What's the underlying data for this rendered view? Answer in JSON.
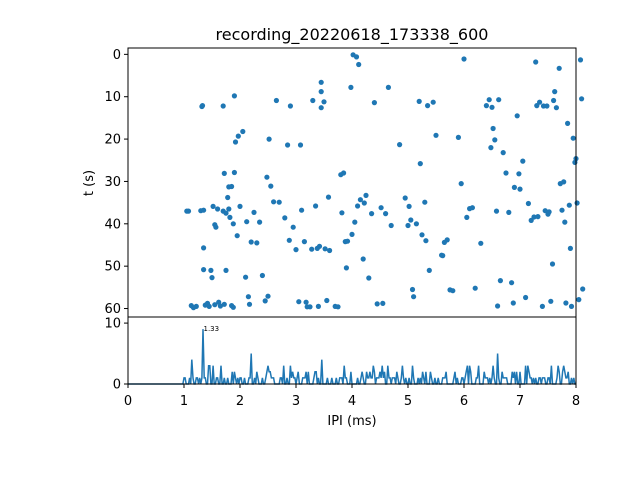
{
  "chart_data": [
    {
      "type": "scatter",
      "title": "recording_20220618_173338_600",
      "xlabel": "",
      "ylabel": "t (s)",
      "xlim": [
        0,
        8
      ],
      "ylim": [
        62,
        -1.5
      ],
      "y_inverted": true,
      "yticks": [
        "0",
        "10",
        "20",
        "30",
        "40",
        "50",
        "60"
      ],
      "marker_color": "#1f77b4",
      "points": [
        [
          1.05,
          37.0
        ],
        [
          1.08,
          37.0
        ],
        [
          1.13,
          59.3
        ],
        [
          1.17,
          59.8
        ],
        [
          1.22,
          59.5
        ],
        [
          1.3,
          36.9
        ],
        [
          1.32,
          12.3
        ],
        [
          1.33,
          12.1
        ],
        [
          1.35,
          36.8
        ],
        [
          1.35,
          45.7
        ],
        [
          1.35,
          50.8
        ],
        [
          1.38,
          59.2
        ],
        [
          1.42,
          58.8
        ],
        [
          1.45,
          59.5
        ],
        [
          1.48,
          51.0
        ],
        [
          1.5,
          52.7
        ],
        [
          1.52,
          35.9
        ],
        [
          1.55,
          59.1
        ],
        [
          1.55,
          40.2
        ],
        [
          1.57,
          40.8
        ],
        [
          1.6,
          36.5
        ],
        [
          1.62,
          58.5
        ],
        [
          1.65,
          59.4
        ],
        [
          1.7,
          37.0
        ],
        [
          1.7,
          12.2
        ],
        [
          1.72,
          59.0
        ],
        [
          1.72,
          28.1
        ],
        [
          1.75,
          51.0
        ],
        [
          1.75,
          37.5
        ],
        [
          1.78,
          33.8
        ],
        [
          1.8,
          31.3
        ],
        [
          1.8,
          36.5
        ],
        [
          1.82,
          38.5
        ],
        [
          1.85,
          31.2
        ],
        [
          1.85,
          59.3
        ],
        [
          1.88,
          59.7
        ],
        [
          1.88,
          40.0
        ],
        [
          1.9,
          9.8
        ],
        [
          1.9,
          27.9
        ],
        [
          1.92,
          20.7
        ],
        [
          1.95,
          42.8
        ],
        [
          1.97,
          19.3
        ],
        [
          2.0,
          35.9
        ],
        [
          2.05,
          18.2
        ],
        [
          2.1,
          52.6
        ],
        [
          2.12,
          39.5
        ],
        [
          2.15,
          57.2
        ],
        [
          2.17,
          59.0
        ],
        [
          2.2,
          44.3
        ],
        [
          2.25,
          37.3
        ],
        [
          2.3,
          44.5
        ],
        [
          2.35,
          39.6
        ],
        [
          2.4,
          52.2
        ],
        [
          2.45,
          58.2
        ],
        [
          2.48,
          29.0
        ],
        [
          2.5,
          57.1
        ],
        [
          2.52,
          20.0
        ],
        [
          2.55,
          31.1
        ],
        [
          2.6,
          34.8
        ],
        [
          2.65,
          10.9
        ],
        [
          2.7,
          34.9
        ],
        [
          2.8,
          38.6
        ],
        [
          2.85,
          21.4
        ],
        [
          2.88,
          43.9
        ],
        [
          2.9,
          12.2
        ],
        [
          2.95,
          40.8
        ],
        [
          3.0,
          46.1
        ],
        [
          3.05,
          58.4
        ],
        [
          3.08,
          21.4
        ],
        [
          3.1,
          36.8
        ],
        [
          3.15,
          44.2
        ],
        [
          3.18,
          58.5
        ],
        [
          3.2,
          59.6
        ],
        [
          3.25,
          59.6
        ],
        [
          3.28,
          46.0
        ],
        [
          3.3,
          10.9
        ],
        [
          3.35,
          35.8
        ],
        [
          3.38,
          45.8
        ],
        [
          3.4,
          59.5
        ],
        [
          3.42,
          45.3
        ],
        [
          3.45,
          12.6
        ],
        [
          3.45,
          6.6
        ],
        [
          3.45,
          8.8
        ],
        [
          3.5,
          11.2
        ],
        [
          3.52,
          45.9
        ],
        [
          3.55,
          58.1
        ],
        [
          3.58,
          33.7
        ],
        [
          3.6,
          46.3
        ],
        [
          3.7,
          59.5
        ],
        [
          3.75,
          59.6
        ],
        [
          3.8,
          28.4
        ],
        [
          3.82,
          37.4
        ],
        [
          3.85,
          28.0
        ],
        [
          3.88,
          44.2
        ],
        [
          3.9,
          50.4
        ],
        [
          3.92,
          44.1
        ],
        [
          3.98,
          7.8
        ],
        [
          4.0,
          42.5
        ],
        [
          4.02,
          0.1
        ],
        [
          4.05,
          39.6
        ],
        [
          4.08,
          0.6
        ],
        [
          4.1,
          35.8
        ],
        [
          4.12,
          2.4
        ],
        [
          4.15,
          34.3
        ],
        [
          4.2,
          48.3
        ],
        [
          4.22,
          35.1
        ],
        [
          4.25,
          33.3
        ],
        [
          4.3,
          52.8
        ],
        [
          4.35,
          37.6
        ],
        [
          4.4,
          11.4
        ],
        [
          4.45,
          58.9
        ],
        [
          4.52,
          36.2
        ],
        [
          4.55,
          58.8
        ],
        [
          4.6,
          37.6
        ],
        [
          4.65,
          7.8
        ],
        [
          4.7,
          40.4
        ],
        [
          4.85,
          21.3
        ],
        [
          4.95,
          33.9
        ],
        [
          5.0,
          40.4
        ],
        [
          5.02,
          35.9
        ],
        [
          5.05,
          39.1
        ],
        [
          5.08,
          55.5
        ],
        [
          5.1,
          57.2
        ],
        [
          5.15,
          40.0
        ],
        [
          5.2,
          11.1
        ],
        [
          5.22,
          25.8
        ],
        [
          5.25,
          42.6
        ],
        [
          5.3,
          34.9
        ],
        [
          5.32,
          44.0
        ],
        [
          5.35,
          12.1
        ],
        [
          5.38,
          51.0
        ],
        [
          5.45,
          11.3
        ],
        [
          5.5,
          19.1
        ],
        [
          5.6,
          47.4
        ],
        [
          5.62,
          47.5
        ],
        [
          5.65,
          44.4
        ],
        [
          5.7,
          43.8
        ],
        [
          5.75,
          55.6
        ],
        [
          5.8,
          55.8
        ],
        [
          5.9,
          19.6
        ],
        [
          5.95,
          30.5
        ],
        [
          6.0,
          1.1
        ],
        [
          6.05,
          38.5
        ],
        [
          6.1,
          36.4
        ],
        [
          6.15,
          36.2
        ],
        [
          6.2,
          55.2
        ],
        [
          6.3,
          44.6
        ],
        [
          6.4,
          12.1
        ],
        [
          6.45,
          10.7
        ],
        [
          6.48,
          22.0
        ],
        [
          6.5,
          12.5
        ],
        [
          6.52,
          17.5
        ],
        [
          6.55,
          20.2
        ],
        [
          6.58,
          37.0
        ],
        [
          6.6,
          59.4
        ],
        [
          6.62,
          10.7
        ],
        [
          6.65,
          53.4
        ],
        [
          6.7,
          23.2
        ],
        [
          6.75,
          28.0
        ],
        [
          6.8,
          37.3
        ],
        [
          6.85,
          53.9
        ],
        [
          6.88,
          58.7
        ],
        [
          6.9,
          31.4
        ],
        [
          6.95,
          14.5
        ],
        [
          6.98,
          28.2
        ],
        [
          7.0,
          31.8
        ],
        [
          7.05,
          25.2
        ],
        [
          7.1,
          57.4
        ],
        [
          7.15,
          35.2
        ],
        [
          7.2,
          39.2
        ],
        [
          7.25,
          38.4
        ],
        [
          7.28,
          1.8
        ],
        [
          7.3,
          12.1
        ],
        [
          7.32,
          38.3
        ],
        [
          7.35,
          11.3
        ],
        [
          7.4,
          59.5
        ],
        [
          7.42,
          12.2
        ],
        [
          7.45,
          36.9
        ],
        [
          7.48,
          12.2
        ],
        [
          7.5,
          37.7
        ],
        [
          7.52,
          37.2
        ],
        [
          7.55,
          58.3
        ],
        [
          7.58,
          49.5
        ],
        [
          7.6,
          10.9
        ],
        [
          7.62,
          8.8
        ],
        [
          7.65,
          12.6
        ],
        [
          7.7,
          3.3
        ],
        [
          7.72,
          30.5
        ],
        [
          7.75,
          36.8
        ],
        [
          7.78,
          30.1
        ],
        [
          7.8,
          39.6
        ],
        [
          7.82,
          58.7
        ],
        [
          7.85,
          16.3
        ],
        [
          7.88,
          35.6
        ],
        [
          7.9,
          45.8
        ],
        [
          7.92,
          59.5
        ],
        [
          7.95,
          19.8
        ],
        [
          7.98,
          25.5
        ],
        [
          8.0,
          24.6
        ],
        [
          8.02,
          35.1
        ],
        [
          8.05,
          57.9
        ],
        [
          8.08,
          1.3
        ],
        [
          8.1,
          10.5
        ],
        [
          8.12,
          55.4
        ]
      ]
    },
    {
      "type": "line",
      "title": "",
      "xlabel": "IPI (ms)",
      "ylabel": "",
      "xlim": [
        0,
        8
      ],
      "ylim": [
        0,
        11
      ],
      "xticks": [
        "0",
        "1",
        "2",
        "3",
        "4",
        "5",
        "6",
        "7",
        "8"
      ],
      "yticks": [
        "0",
        "10"
      ],
      "line_color": "#1f77b4",
      "annotation": {
        "text": "1.33",
        "x": 1.33
      },
      "peaks": [
        [
          1.33,
          9
        ],
        [
          1.15,
          4
        ],
        [
          2.2,
          5
        ],
        [
          3.45,
          4
        ],
        [
          6.6,
          5
        ],
        [
          7.1,
          3
        ],
        [
          7.55,
          3
        ]
      ]
    }
  ]
}
